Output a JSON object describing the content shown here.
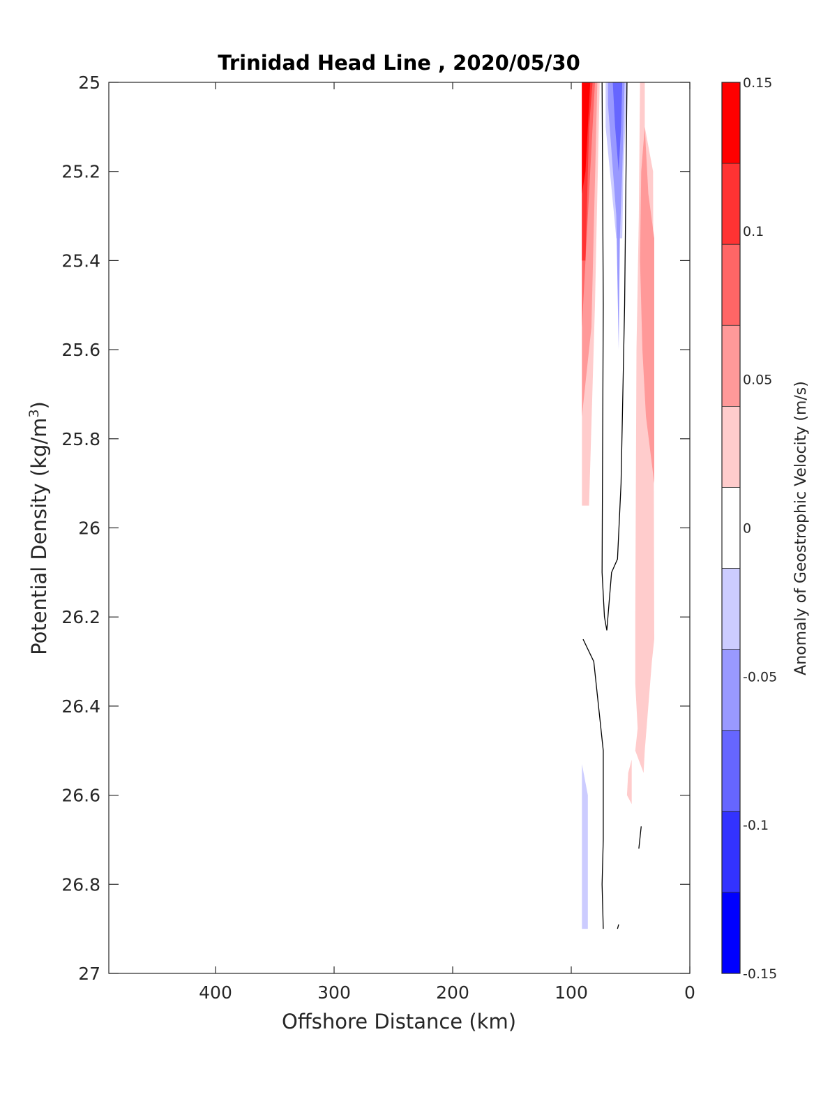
{
  "chart_data": {
    "type": "contourf",
    "title": "Trinidad Head Line , 2020/05/30",
    "xlabel": "Offshore Distance (km)",
    "ylabel": "Potential Density (kg/m",
    "ylabel_superscript": "3",
    "ylabel_suffix": ")",
    "x_reversed": true,
    "y_reversed": true,
    "xlim": [
      490,
      0
    ],
    "ylim": [
      25,
      27
    ],
    "xticks": [
      400,
      300,
      200,
      100,
      0
    ],
    "xtick_labels": [
      "400",
      "300",
      "200",
      "100",
      "0"
    ],
    "yticks": [
      25,
      25.2,
      25.4,
      25.6,
      25.8,
      26,
      26.2,
      26.4,
      26.6,
      26.8,
      27
    ],
    "ytick_labels": [
      "25",
      "25.2",
      "25.4",
      "25.6",
      "25.8",
      "26",
      "26.2",
      "26.4",
      "26.6",
      "26.8",
      "27"
    ],
    "colorbar": {
      "label": "Anomaly of Geostrophic Velocity (m/s)",
      "limits": [
        -0.15,
        0.15
      ],
      "ticks": [
        0.15,
        0.1,
        0.05,
        0,
        -0.05,
        -0.1,
        -0.15
      ],
      "tick_labels": [
        "0.15",
        "0.1",
        "0.05",
        "0",
        "-0.05",
        "-0.1",
        "-0.15"
      ],
      "levels": [
        -0.15,
        -0.125,
        -0.1,
        -0.075,
        -0.05,
        -0.025,
        0.025,
        0.05,
        0.075,
        0.1,
        0.125,
        0.15
      ],
      "colors": [
        "#0000ff",
        "#3333ff",
        "#6666ff",
        "#9999ff",
        "#ccccff",
        "#ffffff",
        "#ffcccc",
        "#ff9999",
        "#ff6666",
        "#ff3333",
        "#ff0000"
      ]
    },
    "regions": [
      {
        "level_color": "#ffcccc",
        "points": [
          [
            91,
            25.0
          ],
          [
            76,
            25.0
          ],
          [
            80,
            25.5
          ],
          [
            85,
            25.95
          ],
          [
            91,
            25.95
          ]
        ]
      },
      {
        "level_color": "#ff9999",
        "points": [
          [
            91,
            25.0
          ],
          [
            78,
            25.0
          ],
          [
            83,
            25.55
          ],
          [
            91,
            25.75
          ]
        ]
      },
      {
        "level_color": "#ff6666",
        "points": [
          [
            91,
            25.0
          ],
          [
            80,
            25.0
          ],
          [
            86,
            25.3
          ],
          [
            91,
            25.55
          ]
        ]
      },
      {
        "level_color": "#ff3333",
        "points": [
          [
            91,
            25.0
          ],
          [
            82,
            25.0
          ],
          [
            85,
            25.1
          ],
          [
            88,
            25.4
          ],
          [
            91,
            25.4
          ]
        ]
      },
      {
        "level_color": "#ff0000",
        "points": [
          [
            91,
            25.0
          ],
          [
            84,
            25.0
          ],
          [
            88,
            25.2
          ],
          [
            91,
            25.25
          ]
        ]
      },
      {
        "level_color": "#ccccff",
        "points": [
          [
            71,
            25.0
          ],
          [
            53,
            25.0
          ],
          [
            56,
            25.2
          ],
          [
            57,
            25.35
          ],
          [
            62,
            25.35
          ],
          [
            71,
            25.1
          ]
        ]
      },
      {
        "level_color": "#9999ff",
        "points": [
          [
            69,
            25.0
          ],
          [
            55,
            25.0
          ],
          [
            57,
            25.2
          ],
          [
            59,
            25.35
          ],
          [
            60,
            25.6
          ],
          [
            62,
            25.3
          ],
          [
            69,
            25.05
          ]
        ]
      },
      {
        "level_color": "#6666ff",
        "points": [
          [
            65,
            25.0
          ],
          [
            57,
            25.0
          ],
          [
            58,
            25.1
          ],
          [
            60,
            25.2
          ],
          [
            63,
            25.1
          ]
        ]
      },
      {
        "level_color": "#ffcccc",
        "points": [
          [
            42,
            25.0
          ],
          [
            38,
            25.0
          ],
          [
            38,
            25.1
          ],
          [
            31,
            25.2
          ],
          [
            30,
            26.25
          ],
          [
            32,
            26.3
          ],
          [
            38,
            26.5
          ],
          [
            39,
            26.55
          ],
          [
            46,
            26.5
          ],
          [
            44,
            26.45
          ],
          [
            46,
            26.35
          ],
          [
            46,
            26.2
          ],
          [
            45,
            25.6
          ],
          [
            43,
            25.3
          ]
        ]
      },
      {
        "level_color": "#ff9999",
        "points": [
          [
            38,
            25.1
          ],
          [
            35,
            25.25
          ],
          [
            30,
            25.35
          ],
          [
            30,
            25.9
          ],
          [
            37,
            25.75
          ],
          [
            40,
            25.6
          ],
          [
            42,
            25.4
          ],
          [
            41,
            25.2
          ]
        ]
      },
      {
        "level_color": "#ffcccc",
        "points": [
          [
            52,
            26.55
          ],
          [
            49,
            26.52
          ],
          [
            49,
            26.62
          ],
          [
            53,
            26.6
          ]
        ]
      },
      {
        "level_color": "#ccccff",
        "points": [
          [
            91,
            26.53
          ],
          [
            86,
            26.6
          ],
          [
            86,
            26.9
          ],
          [
            91,
            26.9
          ]
        ]
      }
    ],
    "contours": [
      {
        "level": 0,
        "points": [
          [
            74,
            25.0
          ],
          [
            73,
            25.5
          ],
          [
            74,
            26.1
          ],
          [
            72,
            26.2
          ],
          [
            70,
            26.23
          ],
          [
            66,
            26.1
          ],
          [
            61,
            26.07
          ],
          [
            58,
            25.9
          ],
          [
            55,
            25.5
          ],
          [
            53,
            25.0
          ]
        ]
      },
      {
        "level": 0,
        "points": [
          [
            90,
            26.25
          ],
          [
            81,
            26.3
          ],
          [
            77,
            26.4
          ],
          [
            73,
            26.5
          ],
          [
            73,
            26.7
          ],
          [
            74,
            26.8
          ],
          [
            73,
            26.9
          ]
        ]
      },
      {
        "level": 0,
        "points": [
          [
            41,
            26.67
          ],
          [
            43,
            26.72
          ]
        ]
      },
      {
        "level": 0,
        "points": [
          [
            60,
            26.89
          ],
          [
            61,
            26.9
          ]
        ]
      }
    ]
  }
}
